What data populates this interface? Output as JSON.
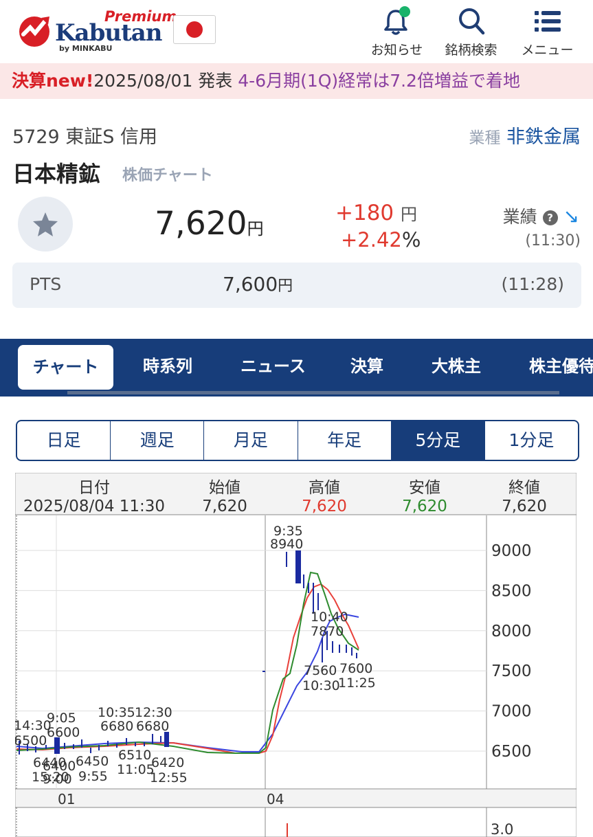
{
  "header": {
    "logo_premium": "Premium",
    "logo_brand": "Kabutan",
    "logo_by": "by MINKABU",
    "notifications_label": "お知らせ",
    "search_label": "銘柄検索",
    "menu_label": "メニュー",
    "notification_dot_color": "#19b36b"
  },
  "banner": {
    "tag": "決算new!",
    "date": "2025/08/01 発表",
    "headline": "4-6月期(1Q)経常は7.2倍増益で着地"
  },
  "stock": {
    "code_line": "5729  東証S  信用",
    "sector_key": "業種",
    "sector_value": "非鉄金属",
    "name": "日本精鉱",
    "name_sub": "株価チャート",
    "price": "7,620",
    "price_unit": "円",
    "change": "+180",
    "change_unit": "円",
    "change_pct": "+2.42",
    "pct_unit": "%",
    "perf_label": "業績",
    "time": "(11:30)"
  },
  "pts": {
    "label": "PTS",
    "price": "7,600",
    "unit": "円",
    "time": "(11:28)"
  },
  "tabs": [
    "チャート",
    "時系列",
    "ニュース",
    "決算",
    "大株主",
    "株主優待"
  ],
  "periods": [
    "日足",
    "週足",
    "月足",
    "年足",
    "5分足",
    "1分足"
  ],
  "active_period": "5分足",
  "chart_data": {
    "type": "candlestick",
    "info": {
      "headers": [
        "日付",
        "始値",
        "高値",
        "安値",
        "終値"
      ],
      "values": [
        "2025/08/04 11:30",
        "7,620",
        "7,620",
        "7,620",
        "7,620"
      ]
    },
    "y_ticks": [
      6500,
      7000,
      7500,
      8000,
      8500,
      9000
    ],
    "subchart_tick": "3.0",
    "x_labels": [
      "01",
      "04"
    ],
    "annotations": [
      {
        "time": "9:35",
        "value": "8940"
      },
      {
        "time": "10:40",
        "value": "7870"
      },
      {
        "time": "10:30",
        "value": "7560"
      },
      {
        "time": "11:25",
        "value": "7600"
      },
      {
        "time": "14:30",
        "value": "6500"
      },
      {
        "time": "9:05",
        "value": "6600"
      },
      {
        "time": "10:35",
        "value": "6680"
      },
      {
        "time": "12:30",
        "value": "6680"
      },
      {
        "time": "15:20",
        "value": "6440"
      },
      {
        "time": "9:00",
        "value": "6400"
      },
      {
        "time": "9:55",
        "value": "6450"
      },
      {
        "time": "11:05",
        "value": "6510"
      },
      {
        "time": "12:55",
        "value": "6420"
      }
    ],
    "colors": {
      "ma_short": "#2e8b2e",
      "ma_mid": "#e8403a",
      "ma_long": "#3b46e0",
      "candle": "#1a2aa0",
      "high": "#e03a2f",
      "low": "#2e8b2e"
    }
  }
}
